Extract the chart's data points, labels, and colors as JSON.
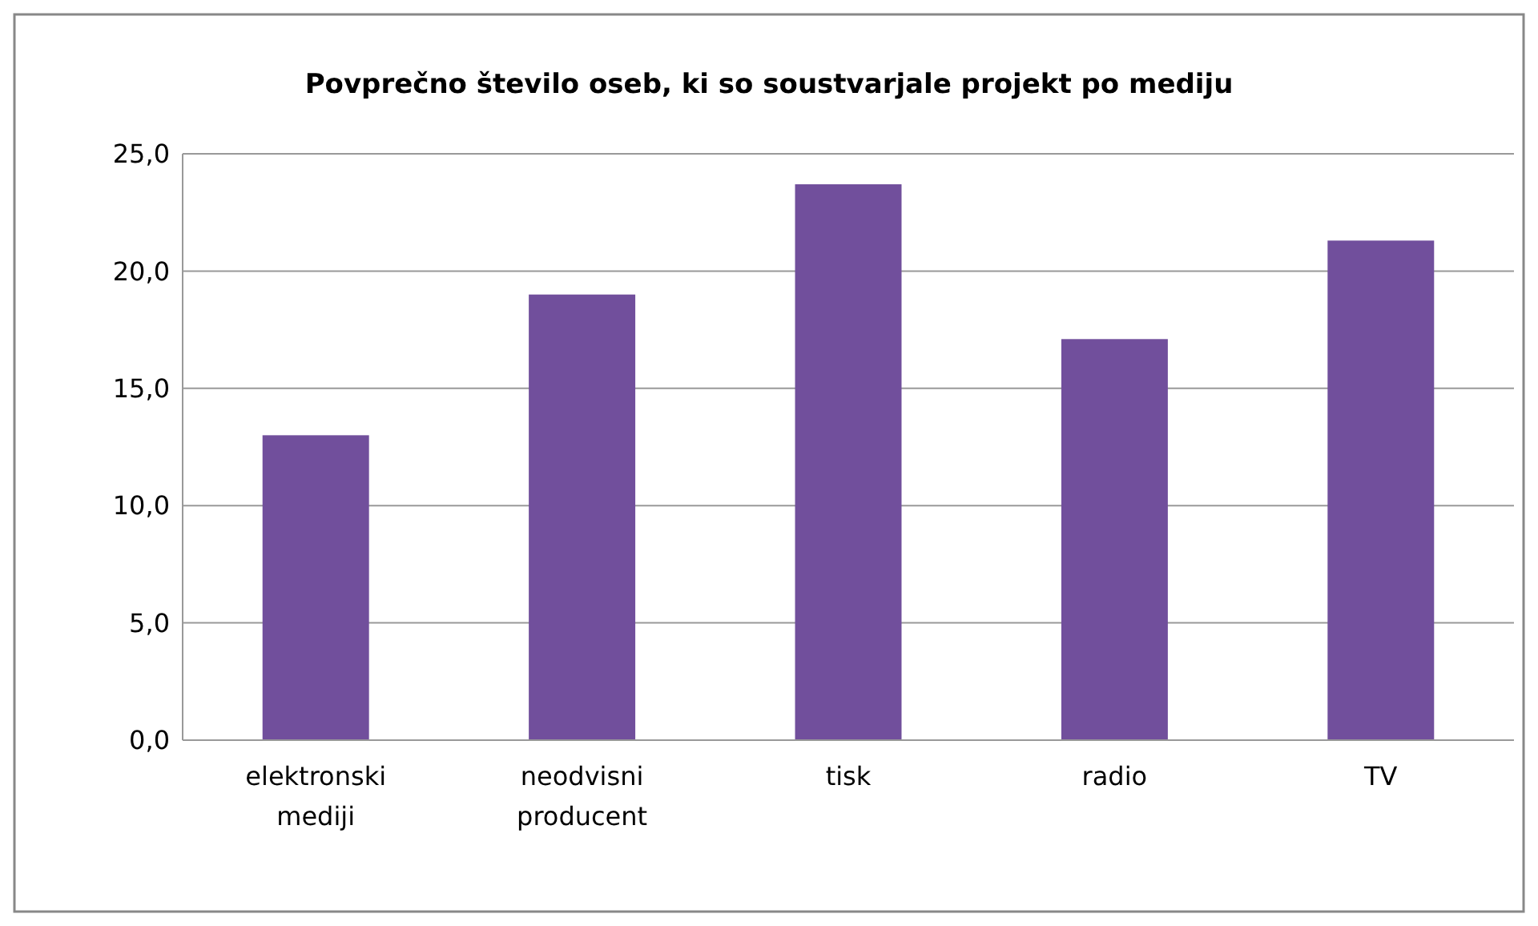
{
  "chart_data": {
    "type": "bar",
    "title": "Povprečno število oseb, ki so soustvarjale projekt po mediju",
    "categories": [
      "elektronski mediji",
      "neodvisni producent",
      "tisk",
      "radio",
      "TV"
    ],
    "values": [
      13.0,
      19.0,
      23.7,
      17.1,
      21.3
    ],
    "color": "#714f9c",
    "ylim": [
      0,
      25
    ],
    "yticks": [
      {
        "value": 0,
        "label": "0,0"
      },
      {
        "value": 5,
        "label": "5,0"
      },
      {
        "value": 10,
        "label": "10,0"
      },
      {
        "value": 15,
        "label": "15,0"
      },
      {
        "value": 20,
        "label": "20,0"
      },
      {
        "value": 25,
        "label": "25,0"
      }
    ],
    "grid": "y"
  }
}
